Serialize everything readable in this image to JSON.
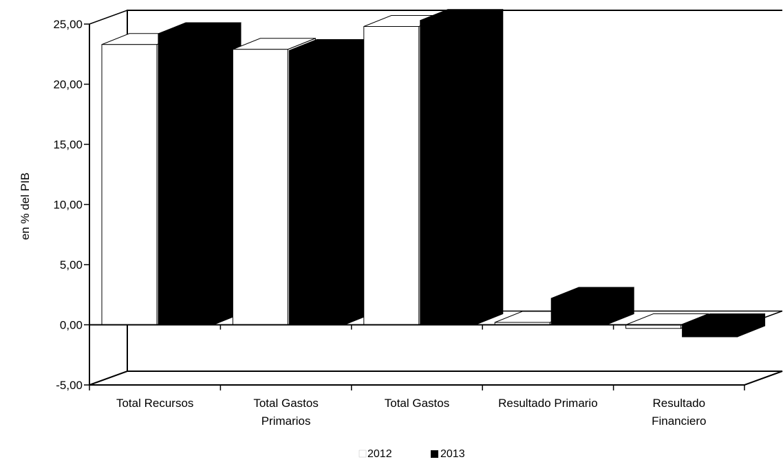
{
  "chart_data": {
    "type": "bar",
    "title": "",
    "xlabel": "",
    "ylabel": "en % del PIB",
    "ylim": [
      -5,
      25
    ],
    "yticks": [
      "-5,00",
      "0,00",
      "5,00",
      "10,00",
      "15,00",
      "20,00",
      "25,00"
    ],
    "ytick_values": [
      -5,
      0,
      5,
      10,
      15,
      20,
      25
    ],
    "categories": [
      [
        "Total Recursos"
      ],
      [
        "Total Gastos",
        "Primarios"
      ],
      [
        "Total Gastos"
      ],
      [
        "Resultado Primario"
      ],
      [
        "Resultado",
        "Financiero"
      ]
    ],
    "series": [
      {
        "name": "2012",
        "values": [
          23.3,
          22.9,
          24.8,
          0.2,
          -0.3
        ],
        "color": "#ffffff"
      },
      {
        "name": "2013",
        "values": [
          24.2,
          22.8,
          25.3,
          2.2,
          -1.0
        ],
        "color": "#000000"
      }
    ],
    "legend_position": "bottom-center",
    "grid": false,
    "style": "3d"
  }
}
